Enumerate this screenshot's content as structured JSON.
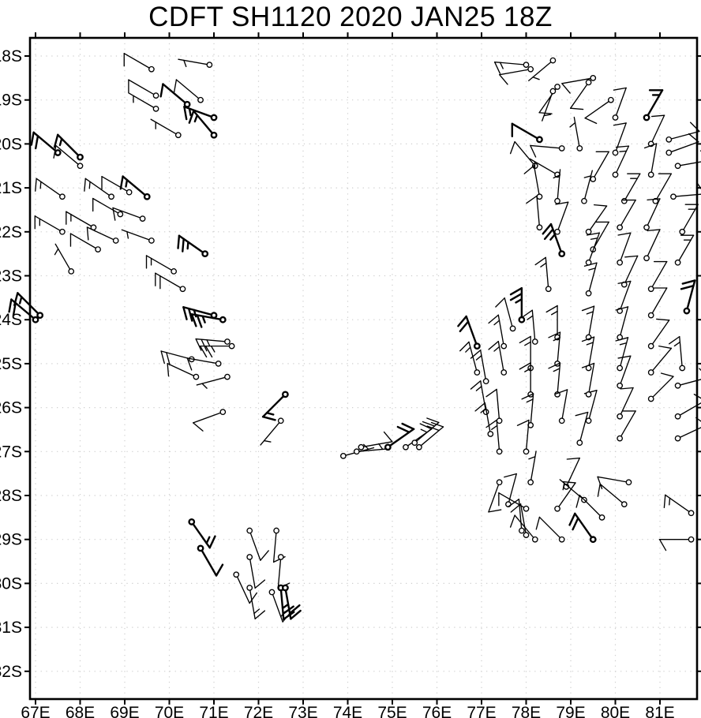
{
  "colors": {
    "ink": "#000000",
    "grid": "#cfcfcf",
    "background": "#ffffff"
  },
  "chart_data": {
    "type": "wind_barb_map",
    "title": "CDFT SH1120 2020 JAN25 18Z",
    "x_axis": {
      "ticks": [
        "67E",
        "68E",
        "69E",
        "70E",
        "71E",
        "72E",
        "73E",
        "74E",
        "75E",
        "76E",
        "77E",
        "78E",
        "79E",
        "80E",
        "81E"
      ],
      "values": [
        67,
        68,
        69,
        70,
        71,
        72,
        73,
        74,
        75,
        76,
        77,
        78,
        79,
        80,
        81
      ],
      "unit": "degrees_east"
    },
    "y_axis": {
      "ticks": [
        "18S",
        "19S",
        "20S",
        "21S",
        "22S",
        "23S",
        "24S",
        "25S",
        "26S",
        "27S",
        "28S",
        "29S",
        "30S",
        "31S",
        "32S"
      ],
      "values": [
        18,
        19,
        20,
        21,
        22,
        23,
        24,
        25,
        26,
        27,
        28,
        29,
        30,
        31,
        32
      ],
      "unit": "degrees_south"
    },
    "grid": {
      "style": "dotted",
      "on": true
    },
    "legend": {
      "shown": false
    },
    "barb_convention": {
      "hemisphere": "southern",
      "full_barb_kt": 10,
      "half_barb_kt": 5,
      "staff_points": "toward_wind_origin"
    },
    "stations_format": [
      "lon_E",
      "lat_S",
      "wind_from_deg",
      "speed_kt",
      "bold"
    ],
    "stations": [
      [
        69.6,
        18.3,
        300,
        10,
        0
      ],
      [
        70.9,
        18.2,
        280,
        5,
        0
      ],
      [
        69.7,
        18.9,
        300,
        10,
        0
      ],
      [
        70.7,
        19.0,
        310,
        10,
        0
      ],
      [
        70.4,
        19.1,
        310,
        10,
        1
      ],
      [
        69.7,
        19.2,
        300,
        5,
        0
      ],
      [
        71.0,
        19.4,
        290,
        15,
        1
      ],
      [
        71.0,
        19.8,
        320,
        15,
        1
      ],
      [
        70.2,
        19.8,
        300,
        5,
        0
      ],
      [
        67.5,
        20.2,
        310,
        20,
        1
      ],
      [
        68.0,
        20.3,
        315,
        15,
        1
      ],
      [
        68.0,
        20.5,
        310,
        10,
        0
      ],
      [
        67.6,
        21.2,
        305,
        15,
        0
      ],
      [
        68.7,
        21.2,
        305,
        15,
        0
      ],
      [
        69.1,
        21.1,
        300,
        10,
        0
      ],
      [
        69.5,
        21.2,
        310,
        15,
        1
      ],
      [
        68.9,
        21.6,
        300,
        10,
        0
      ],
      [
        69.4,
        21.7,
        290,
        10,
        0
      ],
      [
        67.6,
        22.0,
        300,
        15,
        0
      ],
      [
        68.3,
        21.9,
        300,
        15,
        0
      ],
      [
        68.8,
        22.2,
        295,
        10,
        0
      ],
      [
        68.4,
        22.4,
        300,
        10,
        0
      ],
      [
        69.6,
        22.2,
        290,
        5,
        0
      ],
      [
        70.8,
        22.5,
        305,
        25,
        1
      ],
      [
        67.8,
        22.9,
        330,
        5,
        0
      ],
      [
        67.0,
        24.0,
        310,
        20,
        1
      ],
      [
        67.1,
        23.9,
        315,
        15,
        1
      ],
      [
        70.1,
        22.9,
        300,
        15,
        0
      ],
      [
        70.3,
        23.3,
        300,
        20,
        0
      ],
      [
        71.0,
        23.9,
        285,
        25,
        1
      ],
      [
        71.2,
        24.0,
        280,
        25,
        1
      ],
      [
        71.3,
        24.5,
        275,
        25,
        0
      ],
      [
        71.4,
        24.6,
        270,
        25,
        0
      ],
      [
        70.5,
        24.9,
        285,
        20,
        0
      ],
      [
        71.1,
        25.0,
        280,
        10,
        0
      ],
      [
        70.6,
        25.3,
        295,
        10,
        0
      ],
      [
        71.3,
        25.3,
        255,
        5,
        0
      ],
      [
        71.2,
        26.1,
        250,
        10,
        0
      ],
      [
        72.6,
        25.7,
        225,
        15,
        1
      ],
      [
        72.5,
        26.3,
        220,
        5,
        0
      ],
      [
        73.9,
        27.1,
        75,
        5,
        0
      ],
      [
        74.3,
        26.9,
        80,
        10,
        0
      ],
      [
        74.2,
        27.0,
        85,
        5,
        0
      ],
      [
        74.9,
        26.9,
        55,
        20,
        1
      ],
      [
        75.3,
        26.9,
        55,
        15,
        0
      ],
      [
        75.5,
        26.8,
        50,
        20,
        0
      ],
      [
        75.6,
        26.9,
        50,
        20,
        0
      ],
      [
        72.4,
        28.8,
        185,
        10,
        0
      ],
      [
        72.5,
        29.4,
        185,
        10,
        0
      ],
      [
        72.3,
        30.2,
        160,
        15,
        0
      ],
      [
        72.5,
        30.1,
        175,
        25,
        1
      ],
      [
        72.6,
        30.1,
        170,
        20,
        1
      ],
      [
        70.5,
        28.6,
        145,
        15,
        1
      ],
      [
        70.7,
        29.2,
        150,
        10,
        1
      ],
      [
        71.8,
        28.8,
        160,
        10,
        0
      ],
      [
        71.8,
        29.4,
        170,
        10,
        0
      ],
      [
        71.5,
        29.8,
        155,
        10,
        0
      ],
      [
        71.8,
        30.1,
        170,
        15,
        0
      ],
      [
        78.0,
        18.2,
        275,
        15,
        0
      ],
      [
        78.1,
        18.3,
        260,
        10,
        0
      ],
      [
        78.6,
        18.1,
        230,
        5,
        0
      ],
      [
        78.7,
        18.7,
        215,
        10,
        0
      ],
      [
        78.6,
        18.8,
        200,
        5,
        0
      ],
      [
        79.5,
        18.5,
        260,
        10,
        0
      ],
      [
        79.4,
        18.6,
        215,
        10,
        0
      ],
      [
        79.9,
        19.0,
        235,
        10,
        0
      ],
      [
        80.0,
        19.4,
        20,
        10,
        0
      ],
      [
        80.7,
        19.4,
        30,
        15,
        1
      ],
      [
        78.3,
        19.9,
        300,
        10,
        1
      ],
      [
        78.8,
        20.1,
        275,
        10,
        0
      ],
      [
        79.2,
        20.1,
        350,
        5,
        0
      ],
      [
        80.0,
        20.2,
        20,
        10,
        0
      ],
      [
        80.8,
        20.0,
        25,
        10,
        0
      ],
      [
        81.2,
        19.9,
        75,
        10,
        0
      ],
      [
        81.2,
        20.2,
        70,
        10,
        0
      ],
      [
        78.2,
        20.5,
        320,
        10,
        0
      ],
      [
        78.7,
        20.7,
        300,
        5,
        0
      ],
      [
        79.5,
        20.8,
        30,
        10,
        0
      ],
      [
        80.0,
        20.7,
        25,
        15,
        0
      ],
      [
        80.8,
        20.7,
        10,
        10,
        0
      ],
      [
        81.4,
        20.5,
        80,
        10,
        0
      ],
      [
        78.3,
        21.2,
        350,
        10,
        0
      ],
      [
        78.7,
        21.3,
        5,
        5,
        0
      ],
      [
        79.3,
        21.3,
        15,
        5,
        0
      ],
      [
        80.2,
        21.3,
        30,
        15,
        0
      ],
      [
        80.9,
        21.3,
        30,
        10,
        0
      ],
      [
        81.3,
        21.2,
        85,
        10,
        0
      ],
      [
        78.3,
        21.9,
        355,
        10,
        0
      ],
      [
        78.7,
        22.0,
        20,
        10,
        0
      ],
      [
        79.4,
        22.0,
        35,
        10,
        0
      ],
      [
        80.1,
        21.9,
        30,
        10,
        0
      ],
      [
        80.7,
        21.9,
        25,
        10,
        0
      ],
      [
        81.5,
        22.0,
        30,
        15,
        0
      ],
      [
        78.8,
        22.5,
        340,
        25,
        1
      ],
      [
        79.5,
        22.4,
        30,
        10,
        0
      ],
      [
        78.5,
        23.3,
        355,
        15,
        0
      ],
      [
        77.9,
        24.0,
        0,
        25,
        1
      ],
      [
        77.7,
        24.2,
        345,
        10,
        0
      ],
      [
        78.2,
        24.5,
        355,
        15,
        0
      ],
      [
        78.7,
        24.4,
        0,
        15,
        0
      ],
      [
        77.5,
        24.6,
        350,
        15,
        0
      ],
      [
        77.5,
        25.2,
        350,
        15,
        0
      ],
      [
        76.9,
        24.6,
        340,
        20,
        1
      ],
      [
        76.9,
        25.2,
        345,
        15,
        0
      ],
      [
        77.1,
        25.4,
        350,
        15,
        0
      ],
      [
        77.1,
        26.1,
        350,
        15,
        0
      ],
      [
        77.4,
        26.3,
        355,
        10,
        0
      ],
      [
        77.2,
        26.6,
        350,
        15,
        0
      ],
      [
        77.4,
        27.0,
        355,
        15,
        0
      ],
      [
        78.1,
        25.1,
        0,
        15,
        0
      ],
      [
        78.1,
        25.7,
        0,
        15,
        0
      ],
      [
        78.1,
        26.4,
        5,
        15,
        0
      ],
      [
        78.0,
        27.0,
        5,
        10,
        0
      ],
      [
        78.7,
        25.0,
        5,
        15,
        0
      ],
      [
        78.7,
        25.7,
        5,
        15,
        0
      ],
      [
        78.8,
        26.3,
        10,
        10,
        0
      ],
      [
        79.2,
        26.8,
        15,
        10,
        0
      ],
      [
        79.4,
        26.3,
        15,
        10,
        0
      ],
      [
        79.4,
        22.7,
        20,
        15,
        0
      ],
      [
        79.4,
        23.4,
        15,
        15,
        0
      ],
      [
        79.4,
        24.4,
        10,
        15,
        0
      ],
      [
        79.4,
        25.1,
        10,
        15,
        0
      ],
      [
        79.4,
        25.7,
        10,
        10,
        0
      ],
      [
        80.1,
        22.7,
        20,
        10,
        0
      ],
      [
        80.2,
        23.2,
        25,
        10,
        0
      ],
      [
        80.1,
        23.8,
        20,
        10,
        0
      ],
      [
        80.1,
        24.4,
        15,
        10,
        0
      ],
      [
        80.1,
        25.1,
        15,
        15,
        0
      ],
      [
        80.1,
        25.5,
        20,
        10,
        0
      ],
      [
        80.1,
        26.2,
        25,
        10,
        0
      ],
      [
        80.1,
        26.7,
        30,
        10,
        0
      ],
      [
        80.7,
        22.6,
        25,
        10,
        0
      ],
      [
        80.8,
        23.3,
        30,
        10,
        0
      ],
      [
        80.8,
        23.9,
        30,
        10,
        0
      ],
      [
        80.8,
        24.6,
        35,
        10,
        0
      ],
      [
        80.8,
        25.2,
        40,
        10,
        0
      ],
      [
        80.8,
        25.8,
        45,
        10,
        0
      ],
      [
        81.4,
        22.7,
        30,
        15,
        0
      ],
      [
        81.6,
        23.8,
        15,
        20,
        1
      ],
      [
        81.5,
        25.1,
        355,
        15,
        0
      ],
      [
        81.4,
        25.5,
        75,
        10,
        0
      ],
      [
        81.4,
        26.2,
        60,
        10,
        0
      ],
      [
        81.4,
        26.7,
        65,
        10,
        0
      ],
      [
        77.4,
        27.7,
        200,
        10,
        0
      ],
      [
        77.6,
        28.2,
        15,
        10,
        0
      ],
      [
        78.0,
        28.3,
        300,
        10,
        0
      ],
      [
        77.9,
        28.8,
        355,
        10,
        0
      ],
      [
        78.0,
        28.9,
        350,
        10,
        0
      ],
      [
        78.2,
        29.0,
        320,
        10,
        0
      ],
      [
        78.1,
        27.7,
        10,
        5,
        0
      ],
      [
        78.7,
        28.3,
        35,
        10,
        0
      ],
      [
        78.9,
        27.8,
        25,
        10,
        0
      ],
      [
        78.8,
        29.0,
        315,
        10,
        0
      ],
      [
        79.3,
        28.1,
        310,
        5,
        0
      ],
      [
        79.7,
        28.5,
        315,
        10,
        0
      ],
      [
        79.5,
        29.0,
        325,
        20,
        1
      ],
      [
        80.3,
        27.7,
        280,
        10,
        0
      ],
      [
        80.2,
        28.2,
        310,
        10,
        0
      ],
      [
        81.7,
        28.4,
        305,
        15,
        0
      ],
      [
        81.7,
        29.0,
        270,
        10,
        0
      ]
    ]
  }
}
